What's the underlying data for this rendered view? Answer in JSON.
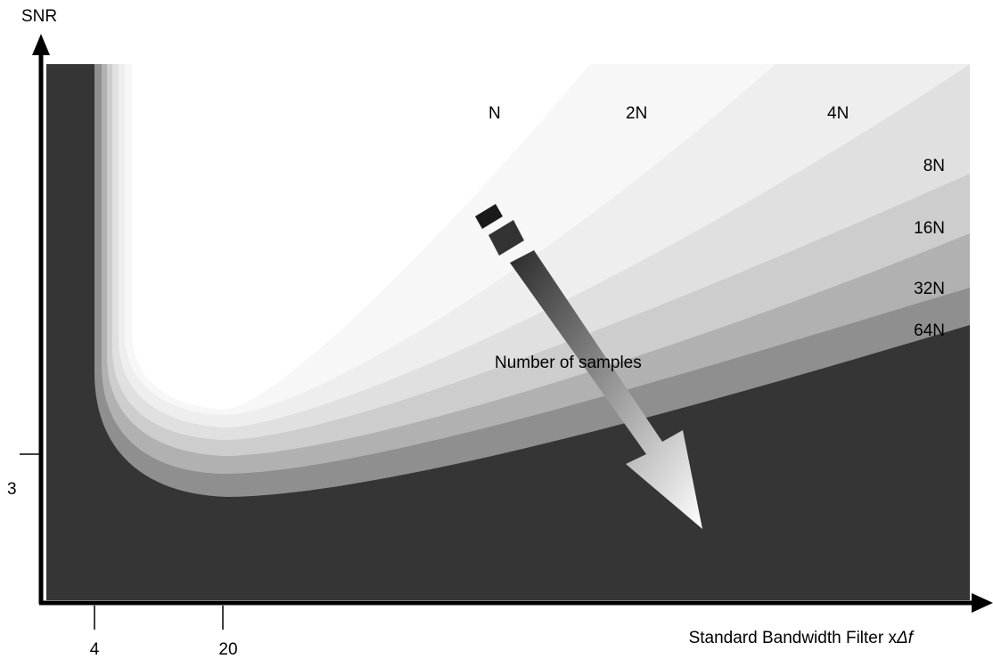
{
  "axes": {
    "y_label": "SNR",
    "x_label_prefix": "Standard Bandwidth Filter x",
    "x_label_symbol": "Δf",
    "y_tick": "3",
    "x_ticks": [
      "4",
      "20"
    ]
  },
  "regions": [
    {
      "label": "N",
      "color": "#ffffff"
    },
    {
      "label": "2N",
      "color": "#f7f7f7"
    },
    {
      "label": "4N",
      "color": "#eeeeee"
    },
    {
      "label": "8N",
      "color": "#e0e0e0"
    },
    {
      "label": "16N",
      "color": "#cdcdcd"
    },
    {
      "label": "32N",
      "color": "#b1b1b1"
    },
    {
      "label": "64N",
      "color": "#8f8f8f"
    }
  ],
  "background_color": "#353535",
  "arrow_label": "Number of samples"
}
